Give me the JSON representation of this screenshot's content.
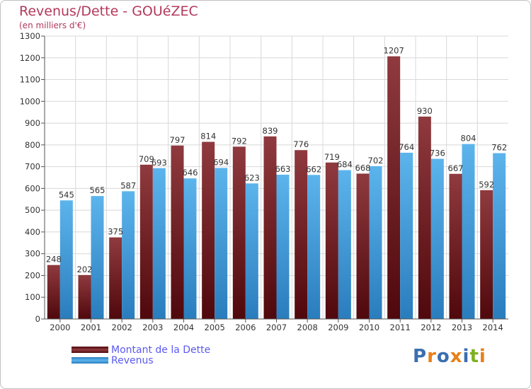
{
  "title": "Revenus/Dette - GOUéZEC",
  "subtitle": "(en milliers d'€)",
  "logo_text": "Proxiti",
  "colors": {
    "title": "#b3385a",
    "dette_dark": "#5c0d12",
    "dette_light": "#8f3a3e",
    "revenus_dark": "#2a80c0",
    "revenus_light": "#5cb4ec",
    "legend_text": "#5a5af0",
    "grid": "#d8d8d8"
  },
  "chart_data": {
    "type": "bar",
    "title": "Revenus/Dette - GOUéZEC",
    "subtitle": "(en milliers d'€)",
    "categories": [
      "2000",
      "2001",
      "2002",
      "2003",
      "2004",
      "2005",
      "2006",
      "2007",
      "2008",
      "2009",
      "2010",
      "2011",
      "2012",
      "2013",
      "2014"
    ],
    "series": [
      {
        "name": "Montant de la Dette",
        "values": [
          248,
          202,
          375,
          709,
          797,
          814,
          792,
          839,
          776,
          719,
          668,
          1207,
          930,
          667,
          592
        ]
      },
      {
        "name": "Revenus",
        "values": [
          545,
          565,
          587,
          693,
          646,
          694,
          623,
          663,
          662,
          684,
          702,
          764,
          736,
          804,
          762
        ]
      }
    ],
    "ylim": [
      0,
      1300
    ],
    "yticks": [
      0,
      100,
      200,
      300,
      400,
      500,
      600,
      700,
      800,
      900,
      1000,
      1100,
      1200,
      1300
    ],
    "grid": true,
    "legend_position": "bottom-left"
  }
}
